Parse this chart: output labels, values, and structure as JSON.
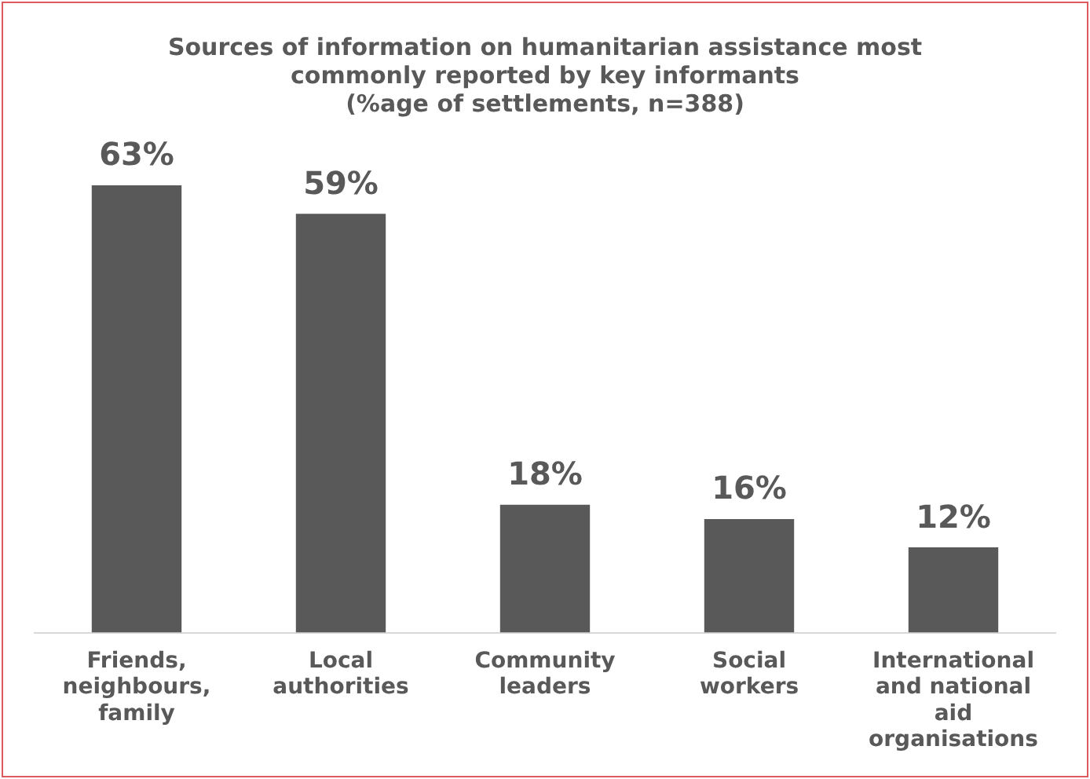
{
  "chart_data": {
    "type": "bar",
    "title": "Sources of information on humanitarian assistance most\ncommonly reported by key informants\n(%age of settlements, n=388)",
    "categories": [
      "Friends, neighbours, family",
      "Local authorities",
      "Community leaders",
      "Social workers",
      "International and national aid organisations"
    ],
    "values": [
      63,
      59,
      18,
      16,
      12
    ],
    "value_labels": [
      "63%",
      "59%",
      "18%",
      "16%",
      "12%"
    ],
    "color": "#595959",
    "grid": false,
    "legend": false
  }
}
